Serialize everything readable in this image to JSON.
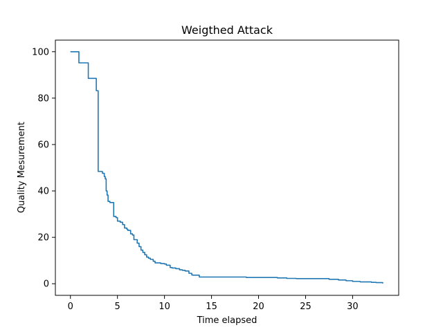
{
  "chart_data": {
    "type": "line",
    "title": "Weigthed Attack",
    "xlabel": "Time elapsed",
    "ylabel": "Quality Mesurement",
    "xlim": [
      -1.6,
      34.9
    ],
    "ylim": [
      -5.0,
      105.0
    ],
    "xticks": [
      0,
      5,
      10,
      15,
      20,
      25,
      30
    ],
    "yticks": [
      0,
      20,
      40,
      60,
      80,
      100
    ],
    "xtick_labels": [
      "0",
      "5",
      "10",
      "15",
      "20",
      "25",
      "30"
    ],
    "ytick_labels": [
      "0",
      "20",
      "40",
      "60",
      "80",
      "100"
    ],
    "grid": false,
    "legend": "none",
    "series": [
      {
        "color": "#1f77b4",
        "step": true,
        "x": [
          0.0,
          0.8,
          0.9,
          1.8,
          1.9,
          2.6,
          2.75,
          2.88,
          2.95,
          3.4,
          3.6,
          3.7,
          3.8,
          3.9,
          4.0,
          4.2,
          4.5,
          4.6,
          4.85,
          5.0,
          5.3,
          5.55,
          5.75,
          6.0,
          6.1,
          6.4,
          6.6,
          6.75,
          7.0,
          7.1,
          7.3,
          7.5,
          7.7,
          7.9,
          8.1,
          8.3,
          8.5,
          8.8,
          9.0,
          9.3,
          9.6,
          10.0,
          10.2,
          10.6,
          10.8,
          11.2,
          11.6,
          11.9,
          12.2,
          12.6,
          12.9,
          13.0,
          13.6,
          13.7,
          17.2,
          18.7,
          21.0,
          22.0,
          23.0,
          24.0,
          26.0,
          27.5,
          28.5,
          29.3,
          30.0,
          30.8,
          32.0,
          32.5,
          33.2
        ],
        "y": [
          100.0,
          100.0,
          95.2,
          95.2,
          88.5,
          88.5,
          83.2,
          83.2,
          48.4,
          47.6,
          46.2,
          45.2,
          40.0,
          38.2,
          35.5,
          35.0,
          35.0,
          29.0,
          28.5,
          27.0,
          26.5,
          25.5,
          24.0,
          23.5,
          23.0,
          21.5,
          21.0,
          19.0,
          19.0,
          17.5,
          16.0,
          14.5,
          13.5,
          12.5,
          11.5,
          11.0,
          10.5,
          9.7,
          9.0,
          9.0,
          8.7,
          8.5,
          8.0,
          7.0,
          6.8,
          6.5,
          6.0,
          5.8,
          5.5,
          4.5,
          3.8,
          3.7,
          3.7,
          2.9,
          2.9,
          2.7,
          2.7,
          2.5,
          2.3,
          2.2,
          2.2,
          1.9,
          1.6,
          1.3,
          1.0,
          0.8,
          0.6,
          0.5,
          0.1
        ]
      }
    ]
  }
}
